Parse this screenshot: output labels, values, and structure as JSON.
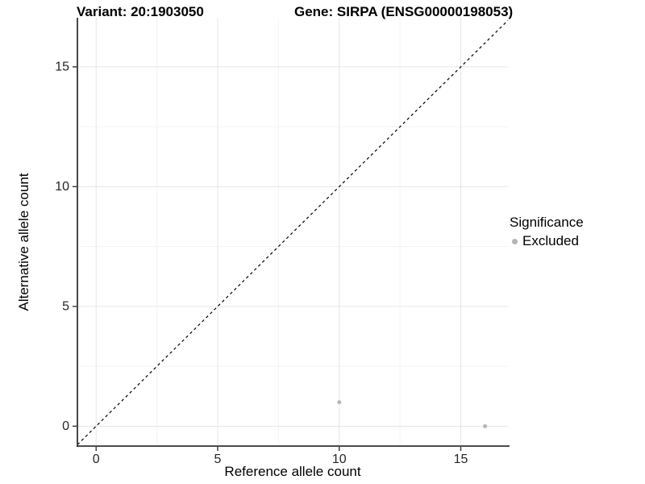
{
  "chart_data": {
    "type": "scatter",
    "title_left": "Variant: 20:1903050",
    "title_right": "Gene: SIRPA (ENSG00000198053)",
    "xlabel": "Reference allele count",
    "ylabel": "Alternative allele count",
    "x_ticks": [
      0,
      5,
      10,
      15
    ],
    "y_ticks": [
      0,
      5,
      10,
      15
    ],
    "x_minor_ticks": [
      2.5,
      7.5,
      12.5
    ],
    "y_minor_ticks": [
      2.5,
      7.5,
      12.5
    ],
    "xlim": [
      -0.77,
      16.94
    ],
    "ylim": [
      -0.83,
      17.05
    ],
    "grid": "major+minor",
    "legend_position": "right",
    "reference_line": {
      "kind": "identity y=x",
      "style": "dashed",
      "color": "#000000"
    },
    "series": [
      {
        "name": "Excluded",
        "color": "#b5b5b5",
        "point_radius": 2.5,
        "points": [
          {
            "x": 10,
            "y": 1
          },
          {
            "x": 16,
            "y": 0
          }
        ]
      }
    ],
    "legend": {
      "title": "Significance",
      "items": [
        {
          "label": "Excluded",
          "color": "#b5b5b5"
        }
      ]
    }
  },
  "colors": {
    "background": "#ffffff",
    "axis": "#333333",
    "tick_label": "#262626",
    "grid_major": "#e6e6e6",
    "grid_minor": "#f3f3f3",
    "title_text": "#000000"
  }
}
